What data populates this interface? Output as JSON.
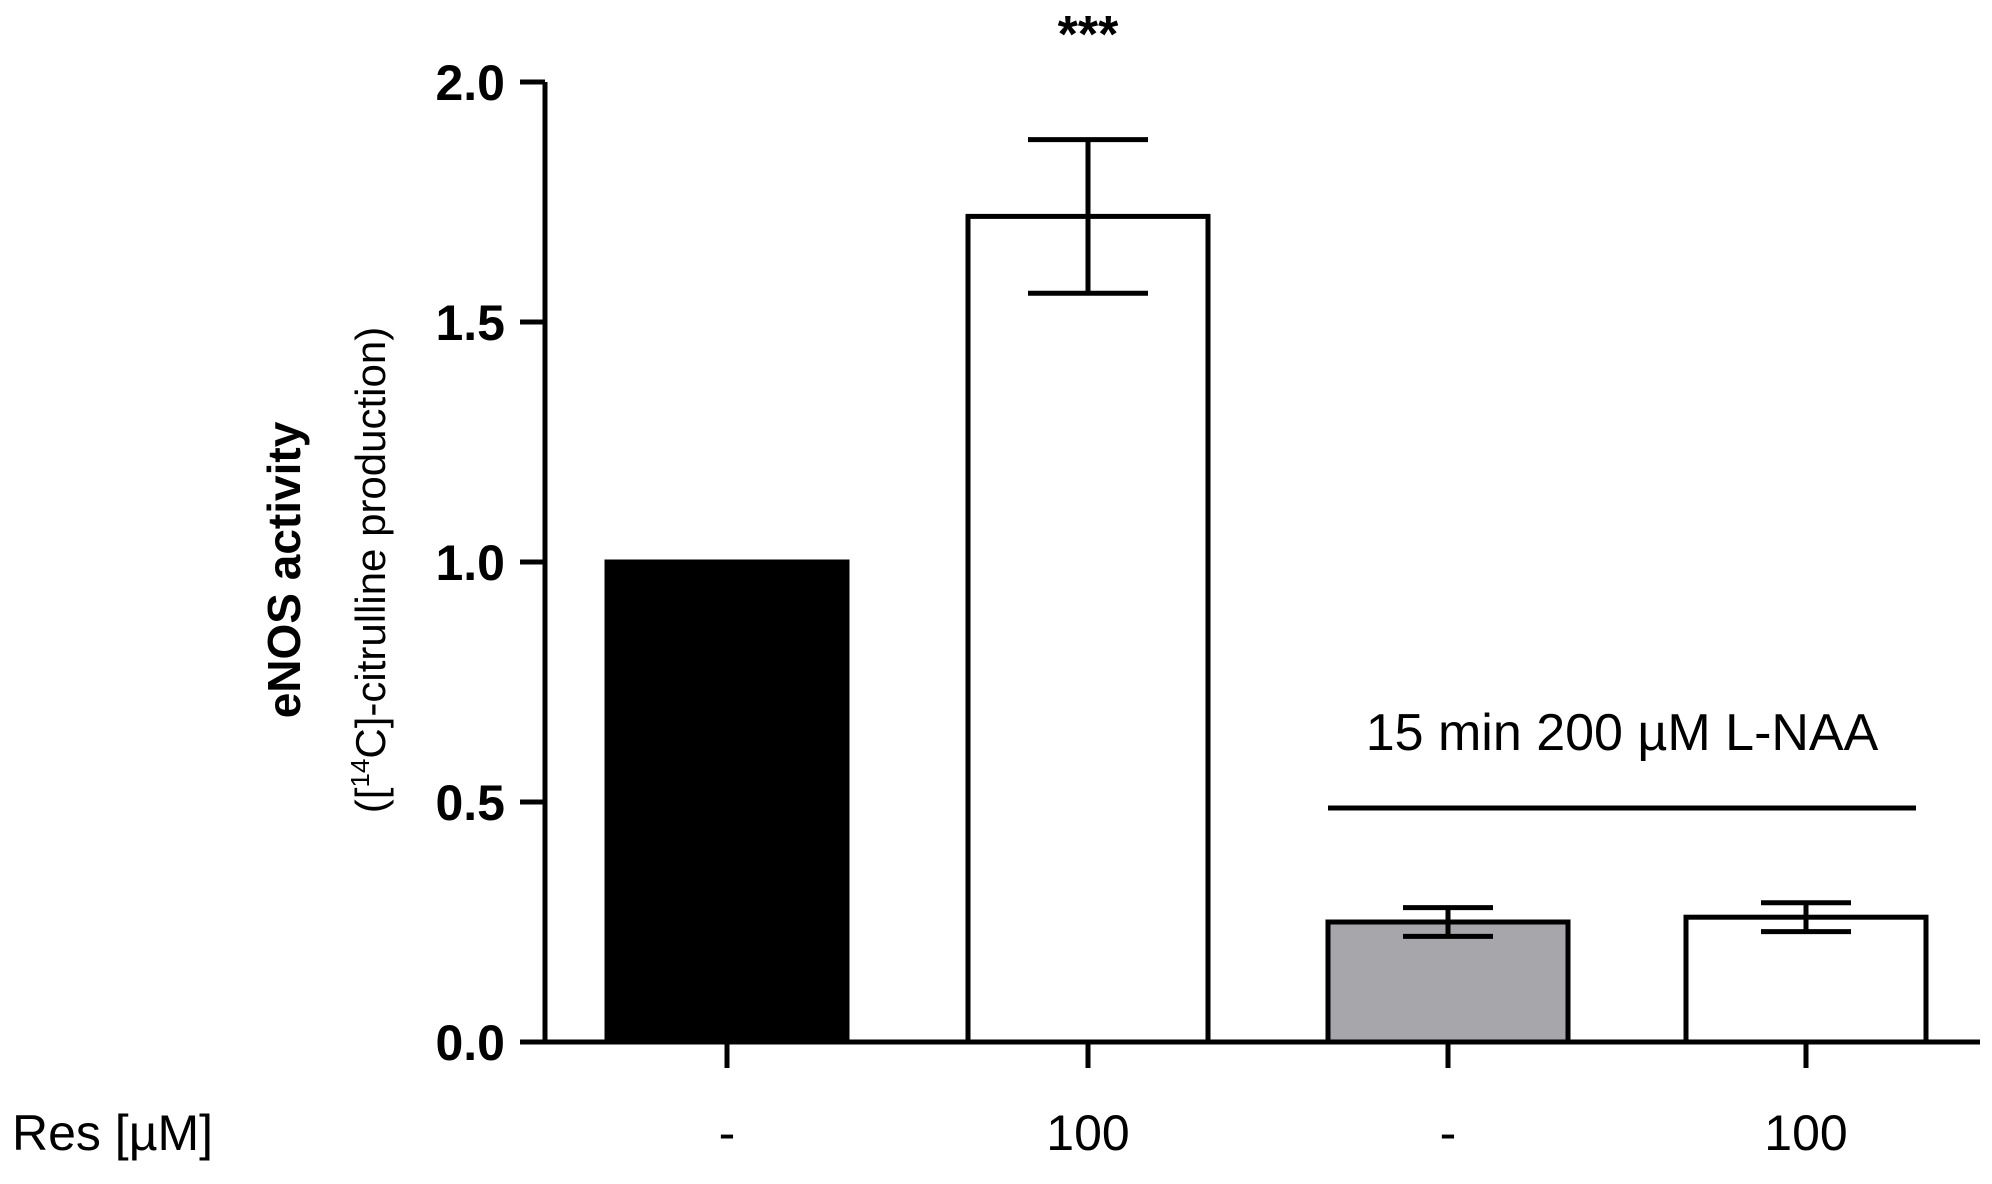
{
  "chart_data": {
    "type": "bar",
    "ylabel": "eNOS activity",
    "ylabel_sub_prefix": "([",
    "ylabel_sub_superscript": "14",
    "ylabel_sub_suffix": "C]-citrulline production)",
    "row_label": "Res [µM]",
    "categories": [
      "-",
      "100",
      "-",
      "100"
    ],
    "values": [
      1.0,
      1.72,
      0.25,
      0.26
    ],
    "errors": [
      0,
      0.16,
      0.03,
      0.03
    ],
    "bar_colors": [
      "#000000",
      "#ffffff",
      "#a6a6ab",
      "#ffffff"
    ],
    "yticks": [
      "0.0",
      "0.5",
      "1.0",
      "1.5",
      "2.0"
    ],
    "ylim": [
      0,
      2.0
    ],
    "significance": [
      {
        "bar_index": 1,
        "label": "***"
      }
    ],
    "group_annotation": {
      "label": "15 min 200 µM L-NAA",
      "from_bar": 2,
      "to_bar": 3
    }
  }
}
